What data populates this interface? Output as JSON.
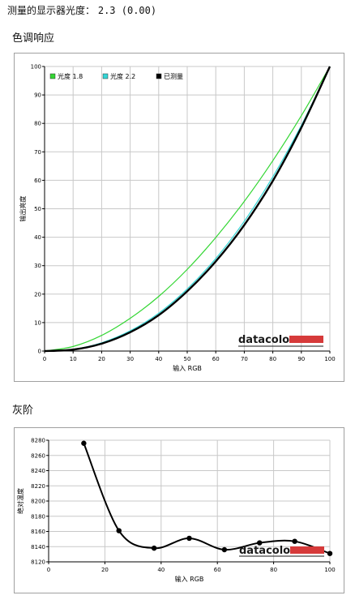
{
  "measured": {
    "label": "测量的显示器光度：",
    "value": "2.3 (0.00)"
  },
  "sections": {
    "tone": "色调响应",
    "gray": "灰阶"
  },
  "brand": {
    "name": "datacolor",
    "accent": "#d63a3a"
  },
  "colors": {
    "gamma18": "#33d633",
    "gamma22": "#33d6d6",
    "measured": "#000000",
    "grid": "#c8c8c8"
  },
  "chart_data": [
    {
      "type": "line",
      "xlabel": "输入 RGB",
      "ylabel": "输出亮度",
      "xlim": [
        0,
        100
      ],
      "ylim": [
        0,
        100
      ],
      "xticks": [
        0,
        10,
        20,
        30,
        40,
        50,
        60,
        70,
        80,
        90,
        100
      ],
      "yticks": [
        0,
        10,
        20,
        30,
        40,
        50,
        60,
        70,
        80,
        90,
        100
      ],
      "grid": true,
      "legend_position": "top-left",
      "x": [
        0,
        10,
        20,
        30,
        40,
        50,
        60,
        70,
        80,
        90,
        100
      ],
      "series": [
        {
          "name": "光度 1.8",
          "color": "#33d633",
          "values": [
            0,
            1.6,
            5.5,
            11.5,
            19.2,
            28.7,
            39.9,
            52.6,
            66.9,
            82.7,
            100
          ]
        },
        {
          "name": "光度 2.2",
          "color": "#33d6d6",
          "values": [
            0,
            0.6,
            2.9,
            7.1,
            13.3,
            21.8,
            32.5,
            45.6,
            61.2,
            79.3,
            100
          ]
        },
        {
          "name": "已测量",
          "color": "#000000",
          "values": [
            0,
            0.5,
            2.6,
            6.6,
            12.6,
            21.0,
            31.5,
            44.3,
            59.8,
            78.5,
            100
          ]
        }
      ]
    },
    {
      "type": "line",
      "xlabel": "输入 RGB",
      "ylabel": "绝对温度",
      "xlim": [
        0,
        100
      ],
      "ylim": [
        8120,
        8280
      ],
      "xticks": [
        0,
        20,
        40,
        60,
        80,
        100
      ],
      "yticks": [
        8120,
        8140,
        8160,
        8180,
        8200,
        8220,
        8240,
        8260,
        8280
      ],
      "grid": true,
      "series": [
        {
          "name": "",
          "color": "#000000",
          "x": [
            12.5,
            25,
            37.5,
            50,
            62.5,
            75,
            87.5,
            100
          ],
          "values": [
            8276,
            8161,
            8138,
            8151,
            8136,
            8145,
            8147,
            8131
          ]
        }
      ]
    }
  ]
}
